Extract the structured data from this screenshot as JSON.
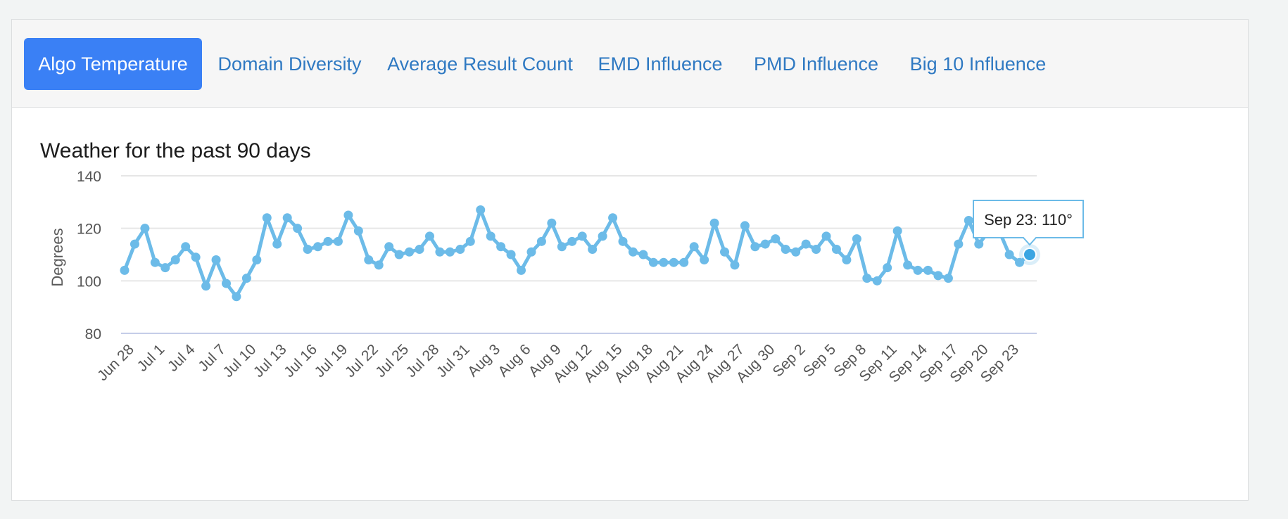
{
  "tabs": [
    {
      "label": "Algo Temperature",
      "active": true
    },
    {
      "label": "Domain Diversity",
      "active": false
    },
    {
      "label": "Average Result Count",
      "active": false
    },
    {
      "label": "EMD Influence",
      "active": false
    },
    {
      "label": "PMD Influence",
      "active": false
    },
    {
      "label": "Big 10 Influence",
      "active": false
    }
  ],
  "colors": {
    "accent": "#3a80f5",
    "tab_link": "#2f79c2",
    "series": "#6cbbe8",
    "grid": "#e6e6e6",
    "axis": "#c5cde8"
  },
  "tooltip": {
    "text": "Sep 23: 110°"
  },
  "chart_data": {
    "type": "line",
    "title": "Weather for the past 90 days",
    "ylabel": "Degrees",
    "xlabel": "",
    "ylim": [
      80,
      140
    ],
    "yticks": [
      "140",
      "120",
      "100",
      "80"
    ],
    "grid": true,
    "legend": "none",
    "x_tick_labels": [
      "Jun 28",
      "Jul 1",
      "Jul 4",
      "Jul 7",
      "Jul 10",
      "Jul 13",
      "Jul 16",
      "Jul 19",
      "Jul 22",
      "Jul 25",
      "Jul 28",
      "Jul 31",
      "Aug 3",
      "Aug 6",
      "Aug 9",
      "Aug 12",
      "Aug 15",
      "Aug 18",
      "Aug 21",
      "Aug 24",
      "Aug 27",
      "Aug 30",
      "Sep 2",
      "Sep 5",
      "Sep 8",
      "Sep 11",
      "Sep 14",
      "Sep 17",
      "Sep 20",
      "Sep 23"
    ],
    "series": [
      {
        "values": [
          104,
          114,
          120,
          107,
          105,
          108,
          113,
          109,
          98,
          108,
          99,
          94,
          101,
          108,
          124,
          114,
          124,
          120,
          112,
          113,
          115,
          115,
          125,
          119,
          108,
          106,
          113,
          110,
          111,
          112,
          117,
          111,
          111,
          112,
          115,
          127,
          117,
          113,
          110,
          104,
          111,
          115,
          122,
          113,
          115,
          117,
          112,
          117,
          124,
          115,
          111,
          110,
          107,
          107,
          107,
          107,
          113,
          108,
          122,
          111,
          106,
          121,
          113,
          114,
          116,
          112,
          111,
          114,
          112,
          117,
          112,
          108,
          116,
          101,
          100,
          105,
          119,
          106,
          104,
          104,
          102,
          101,
          114,
          123,
          114,
          119,
          119,
          110,
          107,
          110
        ]
      }
    ],
    "highlight_index": 89
  }
}
